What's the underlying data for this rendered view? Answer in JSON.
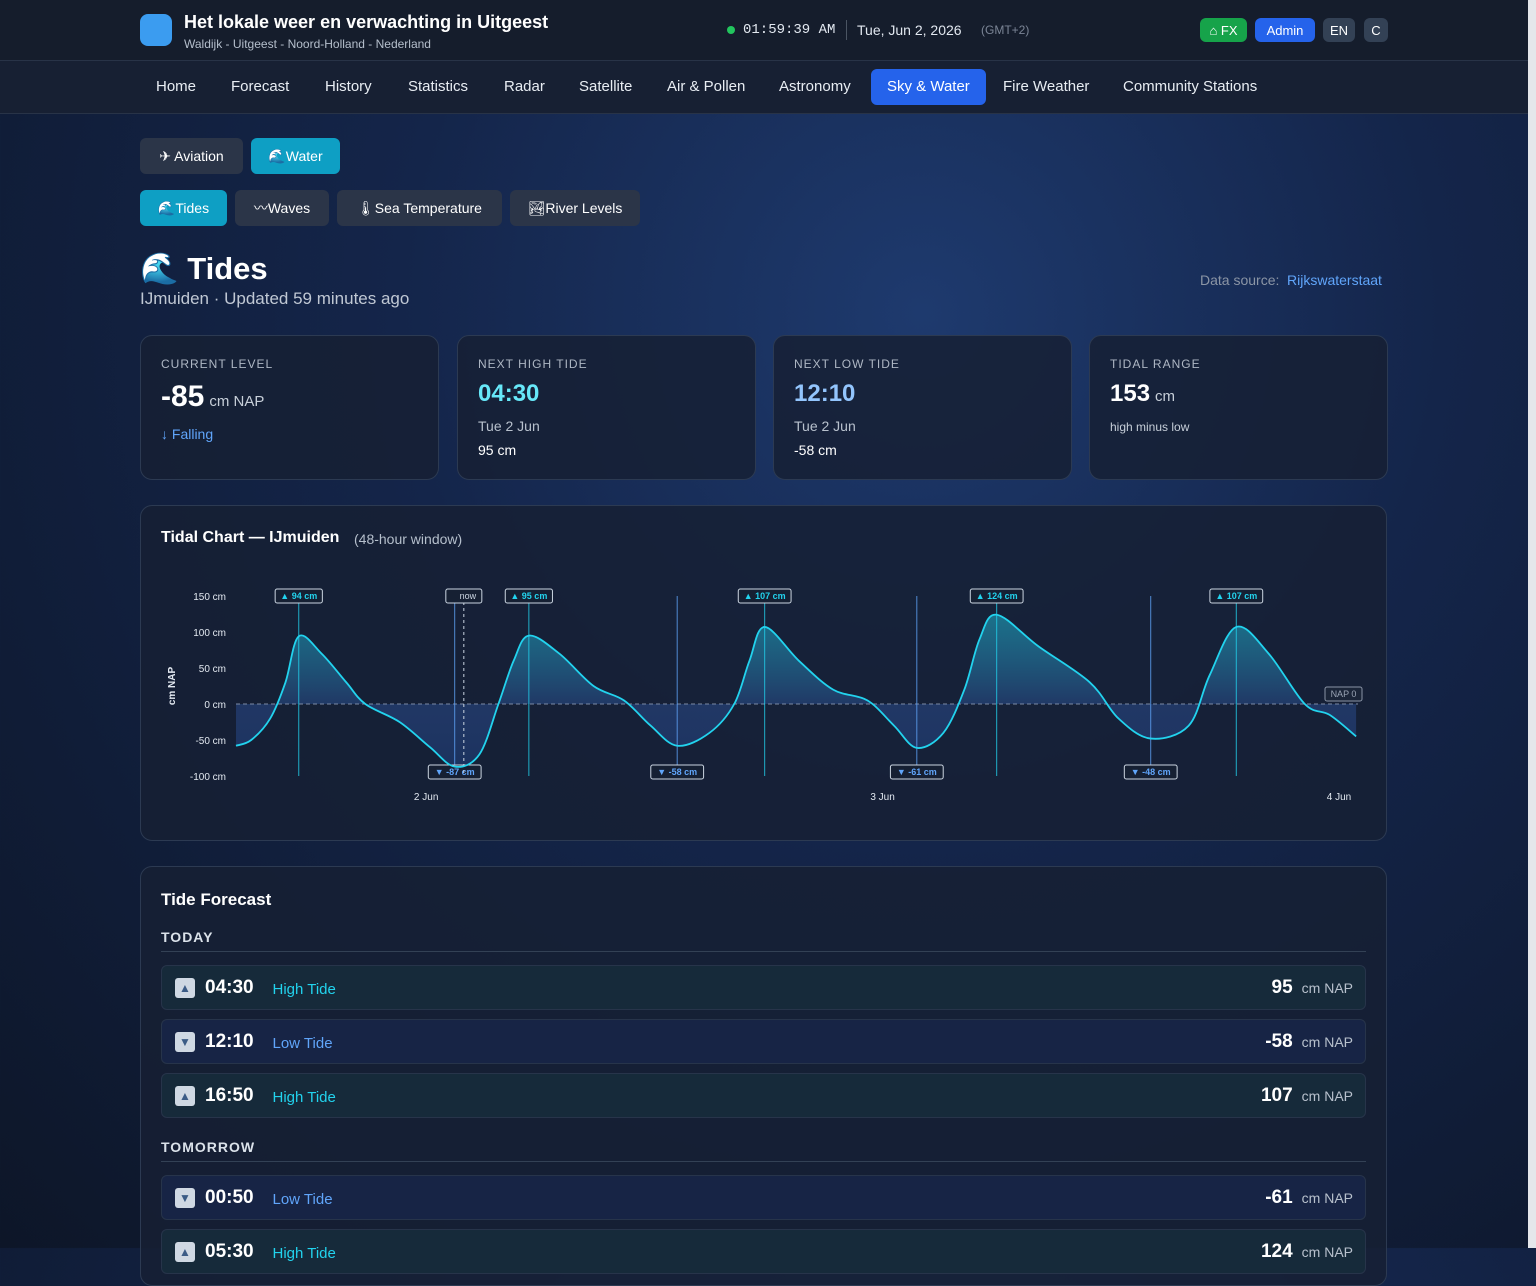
{
  "header": {
    "title": "Het lokale weer en verwachting in Uitgeest",
    "subtitle": "Waldijk - Uitgeest - Noord-Holland - Nederland",
    "clock": "01:59:39 AM",
    "date": "Tue, Jun 2, 2026",
    "timezone": "(GMT+2)",
    "buttons": [
      {
        "label": "⌂ FX",
        "color": "#16a34a"
      },
      {
        "label": "Admin",
        "color": "#2563eb"
      },
      {
        "label": "EN",
        "color": "#334155"
      },
      {
        "label": "C",
        "color": "#334155"
      }
    ]
  },
  "nav": {
    "items": [
      "Home",
      "Forecast",
      "History",
      "Statistics",
      "Radar",
      "Satellite",
      "Air & Pollen",
      "Astronomy",
      "Sky & Water",
      "Fire Weather",
      "Community Stations"
    ],
    "active": 8
  },
  "tabs": {
    "items": [
      "✈ Aviation",
      "🌊Water"
    ],
    "active": 1
  },
  "subtabs": {
    "items": [
      "🌊Tides",
      "〰Waves",
      "🌡Sea Temperature",
      "🏞River Levels"
    ],
    "active": 0
  },
  "page": {
    "title": "🌊 Tides",
    "subtitle": "IJmuiden · Updated 59 minutes ago",
    "source_label": "Data source:",
    "source_link": "Rijkswaterstaat"
  },
  "cards": [
    {
      "label": "CURRENT LEVEL",
      "value": -85,
      "unit": "cm NAP",
      "note": "↓ Falling"
    },
    {
      "label": "NEXT HIGH TIDE",
      "value": "04:30",
      "date": "Tue 2 Jun",
      "level": "95 cm",
      "color": "#67e8f9"
    },
    {
      "label": "NEXT LOW TIDE",
      "value": "12:10",
      "date": "Tue 2 Jun",
      "level": "-58 cm",
      "color": "#93c5fd"
    },
    {
      "label": "TIDAL RANGE",
      "value": 153,
      "unit": "cm",
      "note": "high minus low"
    }
  ],
  "chart": {
    "type": "line",
    "title": "Tidal Chart — IJmuiden",
    "subtitle": "(48-hour window)",
    "y_label": "cm NAP",
    "color": "#22d3ee",
    "x": [
      -10,
      -9.2,
      -8.2,
      -7.4,
      -6.7,
      -5.5,
      -4.2,
      -3.2,
      -1.4,
      0.2,
      1.5,
      2.8,
      3.8,
      4.6,
      5.4,
      7.0,
      8.8,
      10.4,
      11.8,
      13.2,
      14.9,
      16.2,
      17.0,
      17.8,
      19.6,
      21.4,
      23.2,
      24.6,
      25.8,
      27.2,
      28.3,
      29.1,
      30.0,
      32.2,
      34.9,
      36.4,
      38.1,
      40.1,
      41.2,
      42.6,
      44.3,
      46.2,
      47.5,
      48.9
    ],
    "values": [
      -58,
      -50,
      -20,
      30,
      94,
      70,
      30,
      0,
      -25,
      -60,
      -87,
      -70,
      0,
      60,
      95,
      70,
      25,
      5,
      -30,
      -58,
      -40,
      0,
      60,
      107,
      60,
      20,
      5,
      -30,
      -61,
      -40,
      20,
      90,
      124,
      80,
      30,
      -20,
      -48,
      -30,
      40,
      107,
      70,
      0,
      -15,
      -45
    ],
    "xlim": [
      -10,
      49
    ],
    "xticks": [
      {
        "value": 0,
        "label": "2 Jun"
      },
      {
        "value": 24,
        "label": "3 Jun"
      },
      {
        "value": 48,
        "label": "4 Jun"
      }
    ],
    "ylim": [
      -100,
      150
    ],
    "yticks": [
      {
        "value": 150,
        "label": "150 cm"
      },
      {
        "value": 100,
        "label": "100 cm"
      },
      {
        "value": 50,
        "label": "50 cm"
      },
      {
        "value": 0,
        "label": "0 cm"
      },
      {
        "value": -50,
        "label": "-50 cm"
      },
      {
        "value": -100,
        "label": "-100 cm"
      }
    ],
    "extremes": [
      {
        "x": -6.7,
        "value": 94,
        "label": "▲ 94 cm"
      },
      {
        "x": 1.5,
        "value": -87,
        "label": "▼ -87 cm"
      },
      {
        "x": 5.4,
        "value": 95,
        "label": "▲ 95 cm"
      },
      {
        "x": 13.2,
        "value": -58,
        "label": "▼ -58 cm"
      },
      {
        "x": 17.8,
        "value": 107,
        "label": "▲ 107 cm"
      },
      {
        "x": 25.8,
        "value": -61,
        "label": "▼ -61 cm"
      },
      {
        "x": 30.0,
        "value": 124,
        "label": "▲ 124 cm"
      },
      {
        "x": 38.1,
        "value": -48,
        "label": "▼ -48 cm"
      },
      {
        "x": 42.6,
        "value": 107,
        "label": "▲ 107 cm"
      }
    ],
    "now": {
      "x": 1.98,
      "label": "now"
    },
    "reference": {
      "value": 0,
      "label": "NAP 0"
    }
  },
  "forecast": {
    "title": "Tide Forecast",
    "groups": [
      {
        "label": "TODAY",
        "rows": [
          {
            "icon": "▲",
            "time": "04:30",
            "type": "High Tide",
            "value": 95,
            "unit": "cm NAP",
            "color": "#22d3ee"
          },
          {
            "icon": "▼",
            "time": "12:10",
            "type": "Low Tide",
            "value": -58,
            "unit": "cm NAP",
            "color": "#60a5fa"
          },
          {
            "icon": "▲",
            "time": "16:50",
            "type": "High Tide",
            "value": 107,
            "unit": "cm NAP",
            "color": "#22d3ee"
          }
        ]
      },
      {
        "label": "TOMORROW",
        "rows": [
          {
            "icon": "▼",
            "time": "00:50",
            "type": "Low Tide",
            "value": -61,
            "unit": "cm NAP",
            "color": "#60a5fa"
          },
          {
            "icon": "▲",
            "time": "05:30",
            "type": "High Tide",
            "value": 124,
            "unit": "cm NAP",
            "color": "#22d3ee"
          }
        ]
      }
    ]
  }
}
